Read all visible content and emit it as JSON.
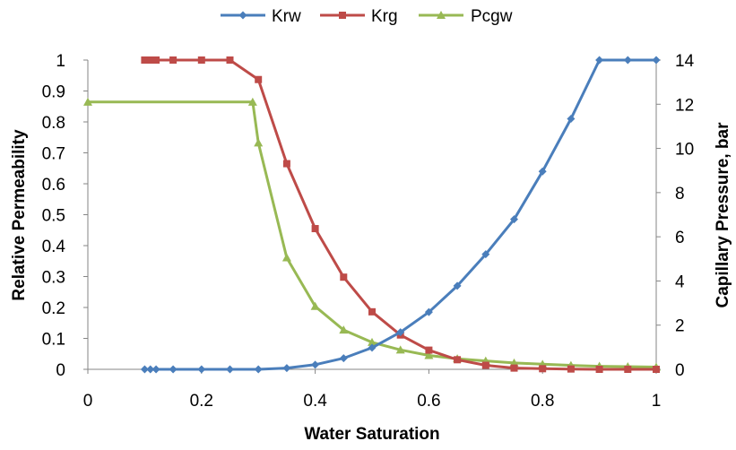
{
  "chart_data": {
    "type": "line",
    "title": "",
    "xlabel": "Water Saturation",
    "ylabel": "Relative Permeability",
    "y2label": "Capillary Pressure, bar",
    "xlim": [
      0,
      1
    ],
    "ylim": [
      0,
      1
    ],
    "y2lim": [
      0,
      14
    ],
    "x_ticks": [
      "0",
      "0.2",
      "0.4",
      "0.6",
      "0.8",
      "1"
    ],
    "y_ticks": [
      "0",
      "0.1",
      "0.2",
      "0.3",
      "0.4",
      "0.5",
      "0.6",
      "0.7",
      "0.8",
      "0.9",
      "1"
    ],
    "y2_ticks": [
      "0",
      "2",
      "4",
      "6",
      "8",
      "10",
      "12",
      "14"
    ],
    "grid": false,
    "legend_position": "top",
    "series": [
      {
        "name": "Krw",
        "axis": "left",
        "color": "#4a7ebb",
        "marker": "diamond",
        "x": [
          0.1,
          0.11,
          0.12,
          0.15,
          0.2,
          0.25,
          0.3,
          0.35,
          0.4,
          0.45,
          0.5,
          0.55,
          0.6,
          0.65,
          0.7,
          0.75,
          0.8,
          0.85,
          0.9,
          0.95,
          1.0
        ],
        "y": [
          0,
          0,
          0,
          0,
          0,
          0,
          0,
          0.004,
          0.015,
          0.036,
          0.07,
          0.12,
          0.185,
          0.27,
          0.372,
          0.485,
          0.64,
          0.81,
          1.0,
          1.0,
          1.0
        ]
      },
      {
        "name": "Krg",
        "axis": "left",
        "color": "#be4b48",
        "marker": "square",
        "x": [
          0.1,
          0.11,
          0.12,
          0.15,
          0.2,
          0.25,
          0.3,
          0.35,
          0.4,
          0.45,
          0.5,
          0.55,
          0.6,
          0.65,
          0.7,
          0.75,
          0.8,
          0.85,
          0.9,
          0.95,
          1.0
        ],
        "y": [
          1,
          1,
          1,
          1,
          1,
          1,
          0.937,
          0.665,
          0.455,
          0.298,
          0.186,
          0.111,
          0.062,
          0.031,
          0.013,
          0.004,
          0.002,
          0.001,
          0,
          0,
          0
        ]
      },
      {
        "name": "Pcgw",
        "axis": "right",
        "color": "#98b954",
        "marker": "triangle",
        "x": [
          0,
          0.29,
          0.3,
          0.35,
          0.4,
          0.45,
          0.5,
          0.55,
          0.6,
          0.65,
          0.7,
          0.75,
          0.8,
          0.85,
          0.9,
          0.95,
          1.0
        ],
        "y": [
          12.1,
          12.1,
          10.25,
          5.05,
          2.85,
          1.78,
          1.22,
          0.88,
          0.63,
          0.48,
          0.38,
          0.29,
          0.23,
          0.18,
          0.14,
          0.12,
          0.1
        ]
      }
    ]
  }
}
